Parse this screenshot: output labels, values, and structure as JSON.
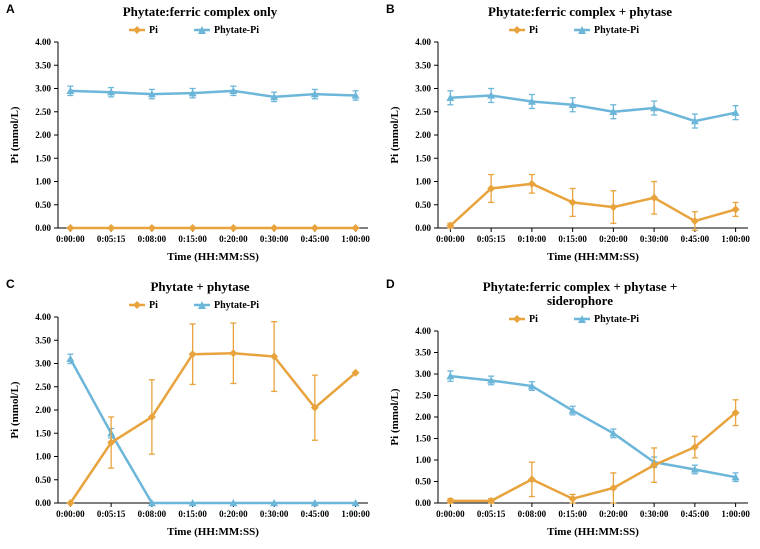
{
  "global": {
    "y_label": "Pi (mmol/L)",
    "x_label": "Time (HH:MM:SS)",
    "legend": {
      "pi": "Pi",
      "phytate": "Phytate-Pi"
    },
    "colors": {
      "pi": "#e8a33d",
      "phytate": "#6cb6d9",
      "axis": "#000000",
      "bg": "#ffffff"
    },
    "line_width": 2.5,
    "marker_size": 4,
    "title_fontsize": 13,
    "axis_label_fontsize": 11,
    "tick_fontsize": 9,
    "ylim": [
      0,
      4.0
    ],
    "ytick_step": 0.5
  },
  "panels": [
    {
      "letter": "A",
      "title": "Phytate:ferric complex only",
      "x_categories": [
        "0:00:00",
        "0:05:15",
        "0:08:00",
        "0:15:00",
        "0:20:00",
        "0:30:00",
        "0:45:00",
        "1:00:00"
      ],
      "series": {
        "pi": {
          "y": [
            0.0,
            0.0,
            0.0,
            0.0,
            0.0,
            0.0,
            0.0,
            0.0
          ],
          "err": [
            0,
            0,
            0,
            0,
            0,
            0,
            0,
            0
          ]
        },
        "phytate": {
          "y": [
            2.95,
            2.92,
            2.88,
            2.9,
            2.95,
            2.82,
            2.88,
            2.85
          ],
          "err": [
            0.1,
            0.1,
            0.1,
            0.1,
            0.1,
            0.1,
            0.1,
            0.1
          ]
        }
      }
    },
    {
      "letter": "B",
      "title": "Phytate:ferric complex + phytase",
      "x_categories": [
        "0:00:00",
        "0:05:15",
        "0:10:00",
        "0:15:00",
        "0:20:00",
        "0:30:00",
        "0:45:00",
        "1:00:00"
      ],
      "series": {
        "pi": {
          "y": [
            0.05,
            0.85,
            0.95,
            0.55,
            0.45,
            0.65,
            0.15,
            0.4
          ],
          "err": [
            0.05,
            0.3,
            0.2,
            0.3,
            0.35,
            0.35,
            0.2,
            0.15
          ]
        },
        "phytate": {
          "y": [
            2.8,
            2.85,
            2.72,
            2.65,
            2.5,
            2.58,
            2.3,
            2.48
          ],
          "err": [
            0.15,
            0.15,
            0.15,
            0.15,
            0.15,
            0.15,
            0.15,
            0.15
          ]
        }
      }
    },
    {
      "letter": "C",
      "title": "Phytate + phytase",
      "x_categories": [
        "0:00:00",
        "0:05:15",
        "0:08:00",
        "0:15:00",
        "0:20:00",
        "0:30:00",
        "0:45:00",
        "1:00:00"
      ],
      "series": {
        "pi": {
          "y": [
            0.0,
            1.3,
            1.85,
            3.2,
            3.22,
            3.15,
            2.05,
            2.8
          ],
          "err": [
            0,
            0.55,
            0.8,
            0.65,
            0.65,
            0.75,
            0.7,
            0.0
          ]
        },
        "phytate": {
          "y": [
            3.1,
            1.5,
            0.0,
            0.0,
            0.0,
            0.0,
            0.0,
            0.0
          ],
          "err": [
            0.1,
            0.1,
            0,
            0,
            0,
            0,
            0,
            0
          ]
        }
      }
    },
    {
      "letter": "D",
      "title": "Phytate:ferric complex + phytase + siderophore",
      "x_categories": [
        "0:00:00",
        "0:05:15",
        "0:08:00",
        "0:15:00",
        "0:20:00",
        "0:30:00",
        "0:45:00",
        "1:00:00"
      ],
      "series": {
        "pi": {
          "y": [
            0.05,
            0.05,
            0.55,
            0.1,
            0.35,
            0.88,
            1.3,
            2.1
          ],
          "err": [
            0.05,
            0.05,
            0.4,
            0.1,
            0.35,
            0.4,
            0.25,
            0.3
          ]
        },
        "phytate": {
          "y": [
            2.95,
            2.85,
            2.72,
            2.15,
            1.62,
            0.95,
            0.78,
            0.6
          ],
          "err": [
            0.12,
            0.1,
            0.1,
            0.1,
            0.1,
            0.12,
            0.1,
            0.1
          ]
        }
      }
    }
  ]
}
